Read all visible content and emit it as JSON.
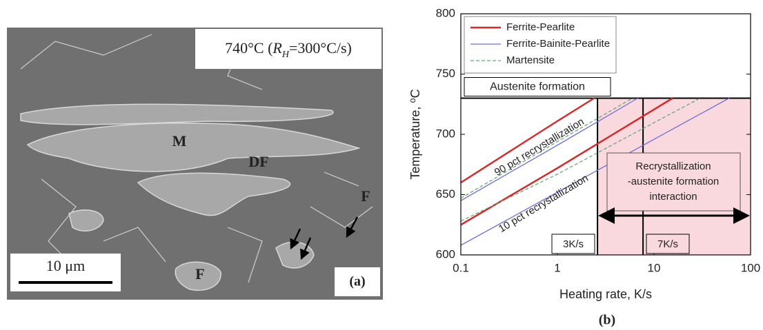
{
  "panel_a": {
    "caption_parts": [
      "740°C (",
      "R",
      "H",
      "=300°C/s)"
    ],
    "labels": [
      "M",
      "DF",
      "F",
      "F"
    ],
    "scale_bar": "10 μm",
    "panel_label": "(a)"
  },
  "chart_data": {
    "type": "line",
    "xlabel": "Heating rate, K/s",
    "ylabel": "Temperature, ⁰C",
    "panel_label": "(b)",
    "xscale": "log",
    "xlim": [
      0.1,
      100
    ],
    "ylim": [
      600,
      800
    ],
    "xticks": [
      0.1,
      1,
      10,
      100
    ],
    "yticks": [
      600,
      650,
      700,
      750,
      800
    ],
    "series": [
      {
        "name": "Ferrite-Pearlite",
        "color": "#d42a2a",
        "x": [
          0.1,
          1,
          2.4,
          null,
          0.1,
          1,
          15.6
        ],
        "values": [
          660,
          711,
          730,
          null,
          625,
          672,
          730
        ]
      },
      {
        "name": "Ferrite-Bainite-Pearlite",
        "color": "#6f6fd6",
        "x": [
          0.1,
          1,
          6.8,
          null,
          0.1,
          1,
          60
        ],
        "values": [
          645,
          691,
          730,
          null,
          608,
          652,
          730
        ]
      },
      {
        "name": "Martensite",
        "color": "#6aa57a",
        "dashed": true,
        "x": [
          0.1,
          1,
          6,
          null,
          0.1,
          1,
          30
        ],
        "values": [
          647,
          694,
          730,
          null,
          628,
          667,
          730
        ]
      }
    ],
    "austenite_temperature": 730,
    "rate_lines": [
      2.6,
      7.7
    ],
    "shade_color": "#f9d9dd",
    "annotations": {
      "austenite": "Austenite formation",
      "recryst_90": "90 pct recrystallization",
      "recryst_10": "10 pct recrystallization",
      "interaction": [
        "Recrystallization",
        "-austenite formation",
        "interaction"
      ],
      "rate_3": "3K/s",
      "rate_7": "7K/s"
    }
  }
}
